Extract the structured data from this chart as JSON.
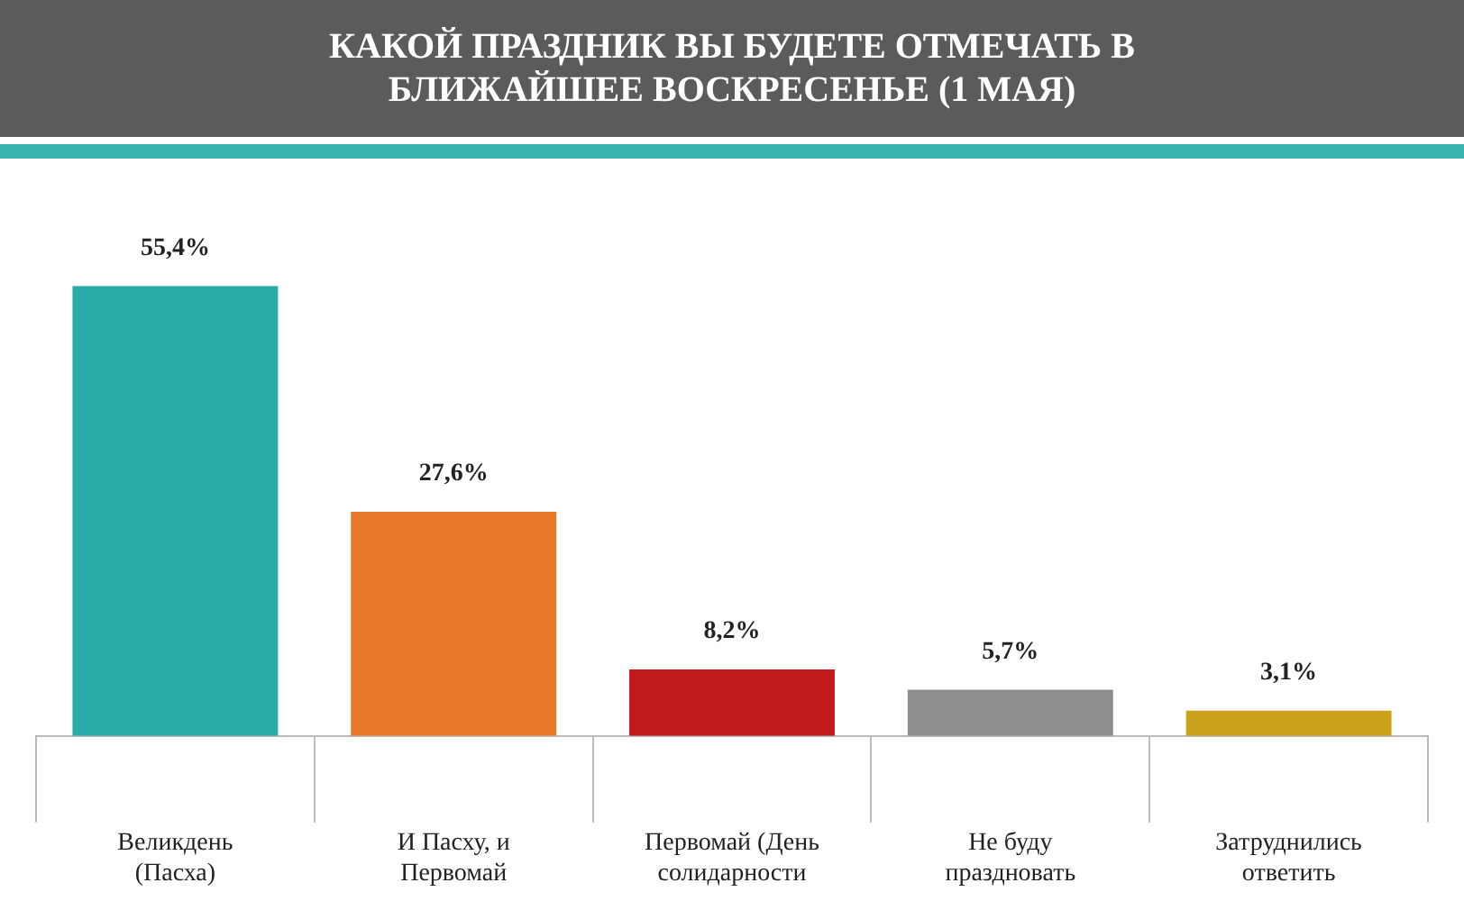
{
  "chart_data": {
    "type": "bar",
    "title": "КАКОЙ ПРАЗДНИК ВЫ БУДЕТЕ ОТМЕЧАТЬ В БЛИЖАЙШЕЕ ВОСКРЕСЕНЬЕ (1 МАЯ)",
    "categories": [
      "Великдень (Пасха)",
      "И Пасху, и Первомай",
      "Первомай (День солидарности",
      "Не буду праздновать",
      "Затруднились ответить"
    ],
    "values": [
      55.4,
      27.6,
      8.2,
      5.7,
      3.1
    ],
    "colors": [
      "#2aaaa8",
      "#e8792b",
      "#c11a1c",
      "#8e8e8e",
      "#c9a11b"
    ],
    "value_labels": [
      "55,4%",
      "27,6%",
      "8,2%",
      "5,7%",
      "3,1%"
    ],
    "tick_labels": "x",
    "grid": false,
    "legend": false
  }
}
